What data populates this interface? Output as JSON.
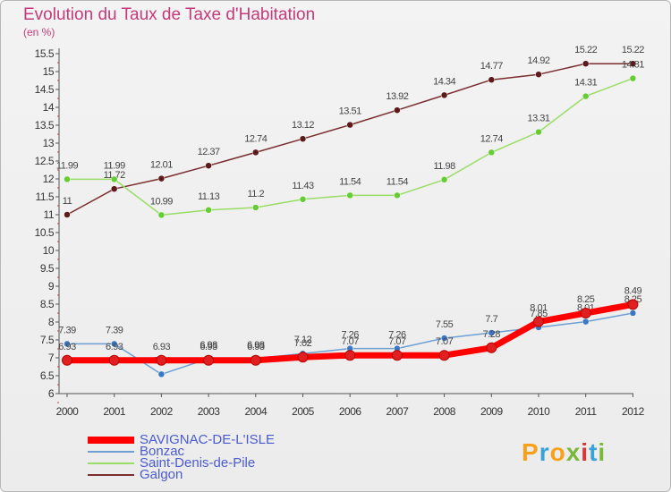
{
  "title": "Evolution du Taux de Taxe d'Habitation",
  "subtitle": "(en %)",
  "logo": {
    "text": "Proxiti",
    "letters": [
      "P",
      "r",
      "o",
      "x",
      "i",
      "t",
      "i"
    ],
    "colors": [
      "#f7a11a",
      "#3aa2d6",
      "#f7a11a",
      "#7ab83b",
      "#e2322f",
      "#3aa2d6",
      "#7ab83b"
    ]
  },
  "chart_data": {
    "type": "line",
    "categories": [
      "2000",
      "2001",
      "2002",
      "2003",
      "2004",
      "2005",
      "2006",
      "2007",
      "2008",
      "2009",
      "2010",
      "2011",
      "2012"
    ],
    "ylim": [
      6,
      15.5
    ],
    "yticks": [
      "6",
      "6.5",
      "7",
      "7.5",
      "8",
      "8.5",
      "9",
      "9.5",
      "10",
      "10.5",
      "11",
      "11.5",
      "12",
      "12.5",
      "13",
      "13.5",
      "14",
      "14.5",
      "15",
      "15.5"
    ],
    "grid": false,
    "legend_position": "bottom-left",
    "series": [
      {
        "name": "SAVIGNAC-DE-L'ISLE",
        "color": "#ff0000",
        "marker": "#e02020",
        "width": 7,
        "values": [
          6.93,
          6.93,
          6.93,
          6.93,
          6.93,
          7.02,
          7.07,
          7.07,
          7.07,
          7.28,
          8.01,
          8.25,
          8.49
        ],
        "labels": [
          "6.93",
          "6.93",
          "6.93",
          "6.93",
          "6.93",
          "7.02",
          "7.07",
          "7.07",
          "7.07",
          "7.28",
          "8.01",
          "8.25",
          "8.49"
        ]
      },
      {
        "name": "Bonzac",
        "color": "#6d9fd3",
        "marker": "#3b78c4",
        "width": 1.5,
        "values": [
          7.39,
          7.39,
          6.54,
          6.98,
          6.98,
          7.12,
          7.26,
          7.26,
          7.55,
          7.7,
          7.85,
          8.01,
          8.25
        ],
        "labels": [
          "7.39",
          "7.39",
          "6.54",
          "6.98",
          "6.98",
          "7.12",
          "7.26",
          "7.26",
          "7.55",
          "7.7",
          "7.85",
          "8.01",
          "8.25"
        ]
      },
      {
        "name": "Saint-Denis-de-Pile",
        "color": "#99dd66",
        "marker": "#66cc33",
        "width": 1.5,
        "values": [
          11.99,
          11.99,
          10.99,
          11.13,
          11.2,
          11.43,
          11.54,
          11.54,
          11.98,
          12.74,
          13.31,
          14.31,
          14.81
        ],
        "labels": [
          "11.99",
          "11.99",
          "10.99",
          "11.13",
          "11.2",
          "11.43",
          "11.54",
          "11.54",
          "11.98",
          "12.74",
          "13.31",
          "14.31",
          "14.81"
        ]
      },
      {
        "name": "Galgon",
        "color": "#7a2e2e",
        "marker": "#5c1a1a",
        "width": 1.5,
        "values": [
          11,
          11.72,
          12.01,
          12.37,
          12.74,
          13.12,
          13.51,
          13.92,
          14.34,
          14.77,
          14.92,
          15.22,
          15.22
        ],
        "labels": [
          "11",
          "11.72",
          "12.01",
          "12.37",
          "12.74",
          "13.12",
          "13.51",
          "13.92",
          "14.34",
          "14.77",
          "14.92",
          "15.22",
          "15.22"
        ]
      }
    ]
  }
}
